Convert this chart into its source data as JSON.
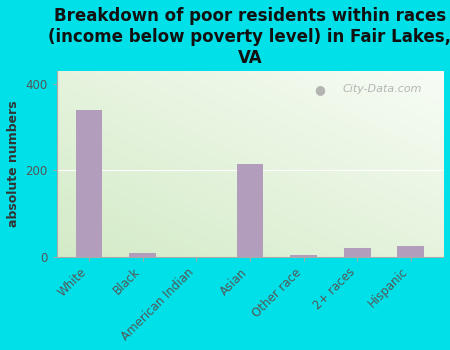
{
  "title": "Breakdown of poor residents within races\n(income below poverty level) in Fair Lakes,\nVA",
  "ylabel": "absolute numbers",
  "categories": [
    "White",
    "Black",
    "American Indian",
    "Asian",
    "Other race",
    "2+ races",
    "Hispanic"
  ],
  "values": [
    340,
    8,
    0,
    215,
    3,
    20,
    25
  ],
  "bar_color": "#b39dbd",
  "background_outer": "#00e0e8",
  "yticks": [
    0,
    200,
    400
  ],
  "ylim": [
    0,
    430
  ],
  "title_fontsize": 12,
  "ylabel_fontsize": 9,
  "tick_fontsize": 8.5,
  "watermark": "City-Data.com"
}
